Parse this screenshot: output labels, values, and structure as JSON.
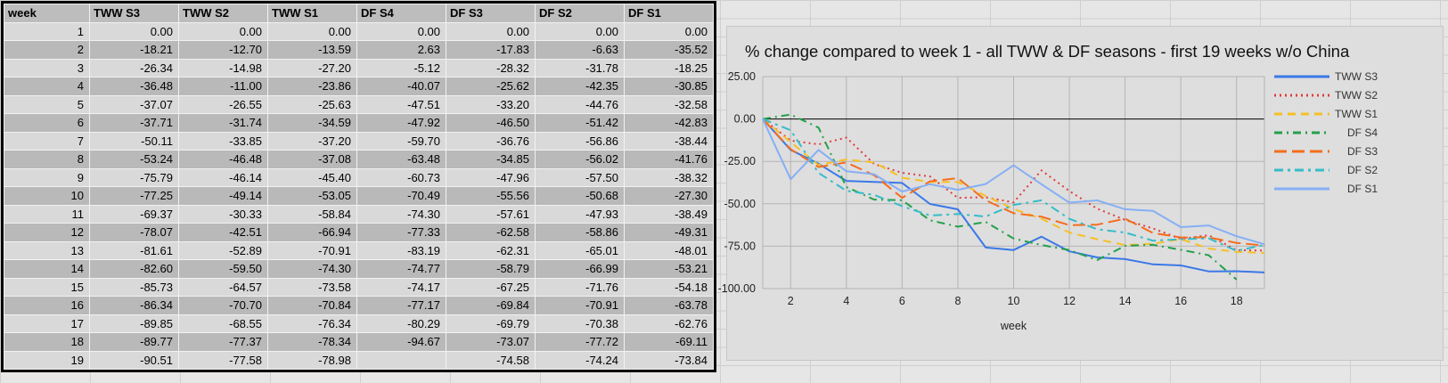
{
  "table": {
    "headers": [
      "week",
      "TWW S3",
      "TWW S2",
      "TWW S1",
      "DF S4",
      "DF S3",
      "DF S2",
      "DF S1"
    ],
    "rows": [
      [
        "1",
        "0.00",
        "0.00",
        "0.00",
        "0.00",
        "0.00",
        "0.00",
        "0.00"
      ],
      [
        "2",
        "-18.21",
        "-12.70",
        "-13.59",
        "2.63",
        "-17.83",
        "-6.63",
        "-35.52"
      ],
      [
        "3",
        "-26.34",
        "-14.98",
        "-27.20",
        "-5.12",
        "-28.32",
        "-31.78",
        "-18.25"
      ],
      [
        "4",
        "-36.48",
        "-11.00",
        "-23.86",
        "-40.07",
        "-25.62",
        "-42.35",
        "-30.85"
      ],
      [
        "5",
        "-37.07",
        "-26.55",
        "-25.63",
        "-47.51",
        "-33.20",
        "-44.76",
        "-32.58"
      ],
      [
        "6",
        "-37.71",
        "-31.74",
        "-34.59",
        "-47.92",
        "-46.50",
        "-51.42",
        "-42.83"
      ],
      [
        "7",
        "-50.11",
        "-33.85",
        "-37.20",
        "-59.70",
        "-36.76",
        "-56.86",
        "-38.44"
      ],
      [
        "8",
        "-53.24",
        "-46.48",
        "-37.08",
        "-63.48",
        "-34.85",
        "-56.02",
        "-41.76"
      ],
      [
        "9",
        "-75.79",
        "-46.14",
        "-45.40",
        "-60.73",
        "-47.96",
        "-57.50",
        "-38.32"
      ],
      [
        "10",
        "-77.25",
        "-49.14",
        "-53.05",
        "-70.49",
        "-55.56",
        "-50.68",
        "-27.30"
      ],
      [
        "11",
        "-69.37",
        "-30.33",
        "-58.84",
        "-74.30",
        "-57.61",
        "-47.93",
        "-38.49"
      ],
      [
        "12",
        "-78.07",
        "-42.51",
        "-66.94",
        "-77.33",
        "-62.58",
        "-58.86",
        "-49.31"
      ],
      [
        "13",
        "-81.61",
        "-52.89",
        "-70.91",
        "-83.19",
        "-62.31",
        "-65.01",
        "-48.01"
      ],
      [
        "14",
        "-82.60",
        "-59.50",
        "-74.30",
        "-74.77",
        "-58.79",
        "-66.99",
        "-53.21"
      ],
      [
        "15",
        "-85.73",
        "-64.57",
        "-73.58",
        "-74.17",
        "-67.25",
        "-71.76",
        "-54.18"
      ],
      [
        "16",
        "-86.34",
        "-70.70",
        "-70.84",
        "-77.17",
        "-69.84",
        "-70.91",
        "-63.78"
      ],
      [
        "17",
        "-89.85",
        "-68.55",
        "-76.34",
        "-80.29",
        "-69.79",
        "-70.38",
        "-62.76"
      ],
      [
        "18",
        "-89.77",
        "-77.37",
        "-78.34",
        "-94.67",
        "-73.07",
        "-77.72",
        "-69.11"
      ],
      [
        "19",
        "-90.51",
        "-77.58",
        "-78.98",
        "",
        "-74.58",
        "-74.24",
        "-73.84"
      ]
    ]
  },
  "chart_data": {
    "type": "line",
    "title": "% change compared to week 1 - all TWW & DF seasons - first 19 weeks w/o China",
    "xlabel": "week",
    "ylabel": "",
    "x": [
      1,
      2,
      3,
      4,
      5,
      6,
      7,
      8,
      9,
      10,
      11,
      12,
      13,
      14,
      15,
      16,
      17,
      18,
      19
    ],
    "x_ticks": [
      "2",
      "4",
      "6",
      "8",
      "10",
      "12",
      "14",
      "16",
      "18"
    ],
    "y_ticks": [
      "25.00",
      "0.00",
      "-25.00",
      "-50.00",
      "-75.00",
      "-100.00"
    ],
    "ylim": [
      -100,
      25
    ],
    "grid": true,
    "legend_position": "right",
    "series": [
      {
        "name": "TWW S3",
        "color": "#3b78e7",
        "dash": "solid",
        "values": [
          0,
          -18.21,
          -26.34,
          -36.48,
          -37.07,
          -37.71,
          -50.11,
          -53.24,
          -75.79,
          -77.25,
          -69.37,
          -78.07,
          -81.61,
          -82.6,
          -85.73,
          -86.34,
          -89.85,
          -89.77,
          -90.51
        ]
      },
      {
        "name": "TWW S2",
        "color": "#e23c3c",
        "dash": "dotted",
        "values": [
          0,
          -12.7,
          -14.98,
          -11.0,
          -26.55,
          -31.74,
          -33.85,
          -46.48,
          -46.14,
          -49.14,
          -30.33,
          -42.51,
          -52.89,
          -59.5,
          -64.57,
          -70.7,
          -68.55,
          -77.37,
          -77.58
        ]
      },
      {
        "name": "TWW S1",
        "color": "#f6c025",
        "dash": "dashed",
        "values": [
          0,
          -13.59,
          -27.2,
          -23.86,
          -25.63,
          -34.59,
          -37.2,
          -37.08,
          -45.4,
          -53.05,
          -58.84,
          -66.94,
          -70.91,
          -74.3,
          -73.58,
          -70.84,
          -76.34,
          -78.34,
          -78.98
        ]
      },
      {
        "name": "DF S4",
        "color": "#23a04a",
        "dash": "dashdot",
        "values": [
          0,
          2.63,
          -5.12,
          -40.07,
          -47.51,
          -47.92,
          -59.7,
          -63.48,
          -60.73,
          -70.49,
          -74.3,
          -77.33,
          -83.19,
          -74.77,
          -74.17,
          -77.17,
          -80.29,
          -94.67,
          null
        ]
      },
      {
        "name": "DF S3",
        "color": "#f46d1f",
        "dash": "longdash",
        "values": [
          0,
          -17.83,
          -28.32,
          -25.62,
          -33.2,
          -46.5,
          -36.76,
          -34.85,
          -47.96,
          -55.56,
          -57.61,
          -62.58,
          -62.31,
          -58.79,
          -67.25,
          -69.84,
          -69.79,
          -73.07,
          -74.58
        ]
      },
      {
        "name": "DF S2",
        "color": "#35bcc8",
        "dash": "dashdot2",
        "values": [
          0,
          -6.63,
          -31.78,
          -42.35,
          -44.76,
          -51.42,
          -56.86,
          -56.02,
          -57.5,
          -50.68,
          -47.93,
          -58.86,
          -65.01,
          -66.99,
          -71.76,
          -70.91,
          -70.38,
          -77.72,
          -74.24
        ]
      },
      {
        "name": "DF S1",
        "color": "#86aff4",
        "dash": "solid",
        "values": [
          0,
          -35.52,
          -18.25,
          -30.85,
          -32.58,
          -42.83,
          -38.44,
          -41.76,
          -38.32,
          -27.3,
          -38.49,
          -49.31,
          -48.01,
          -53.21,
          -54.18,
          -63.78,
          -62.76,
          -69.11,
          -73.84
        ]
      }
    ]
  }
}
